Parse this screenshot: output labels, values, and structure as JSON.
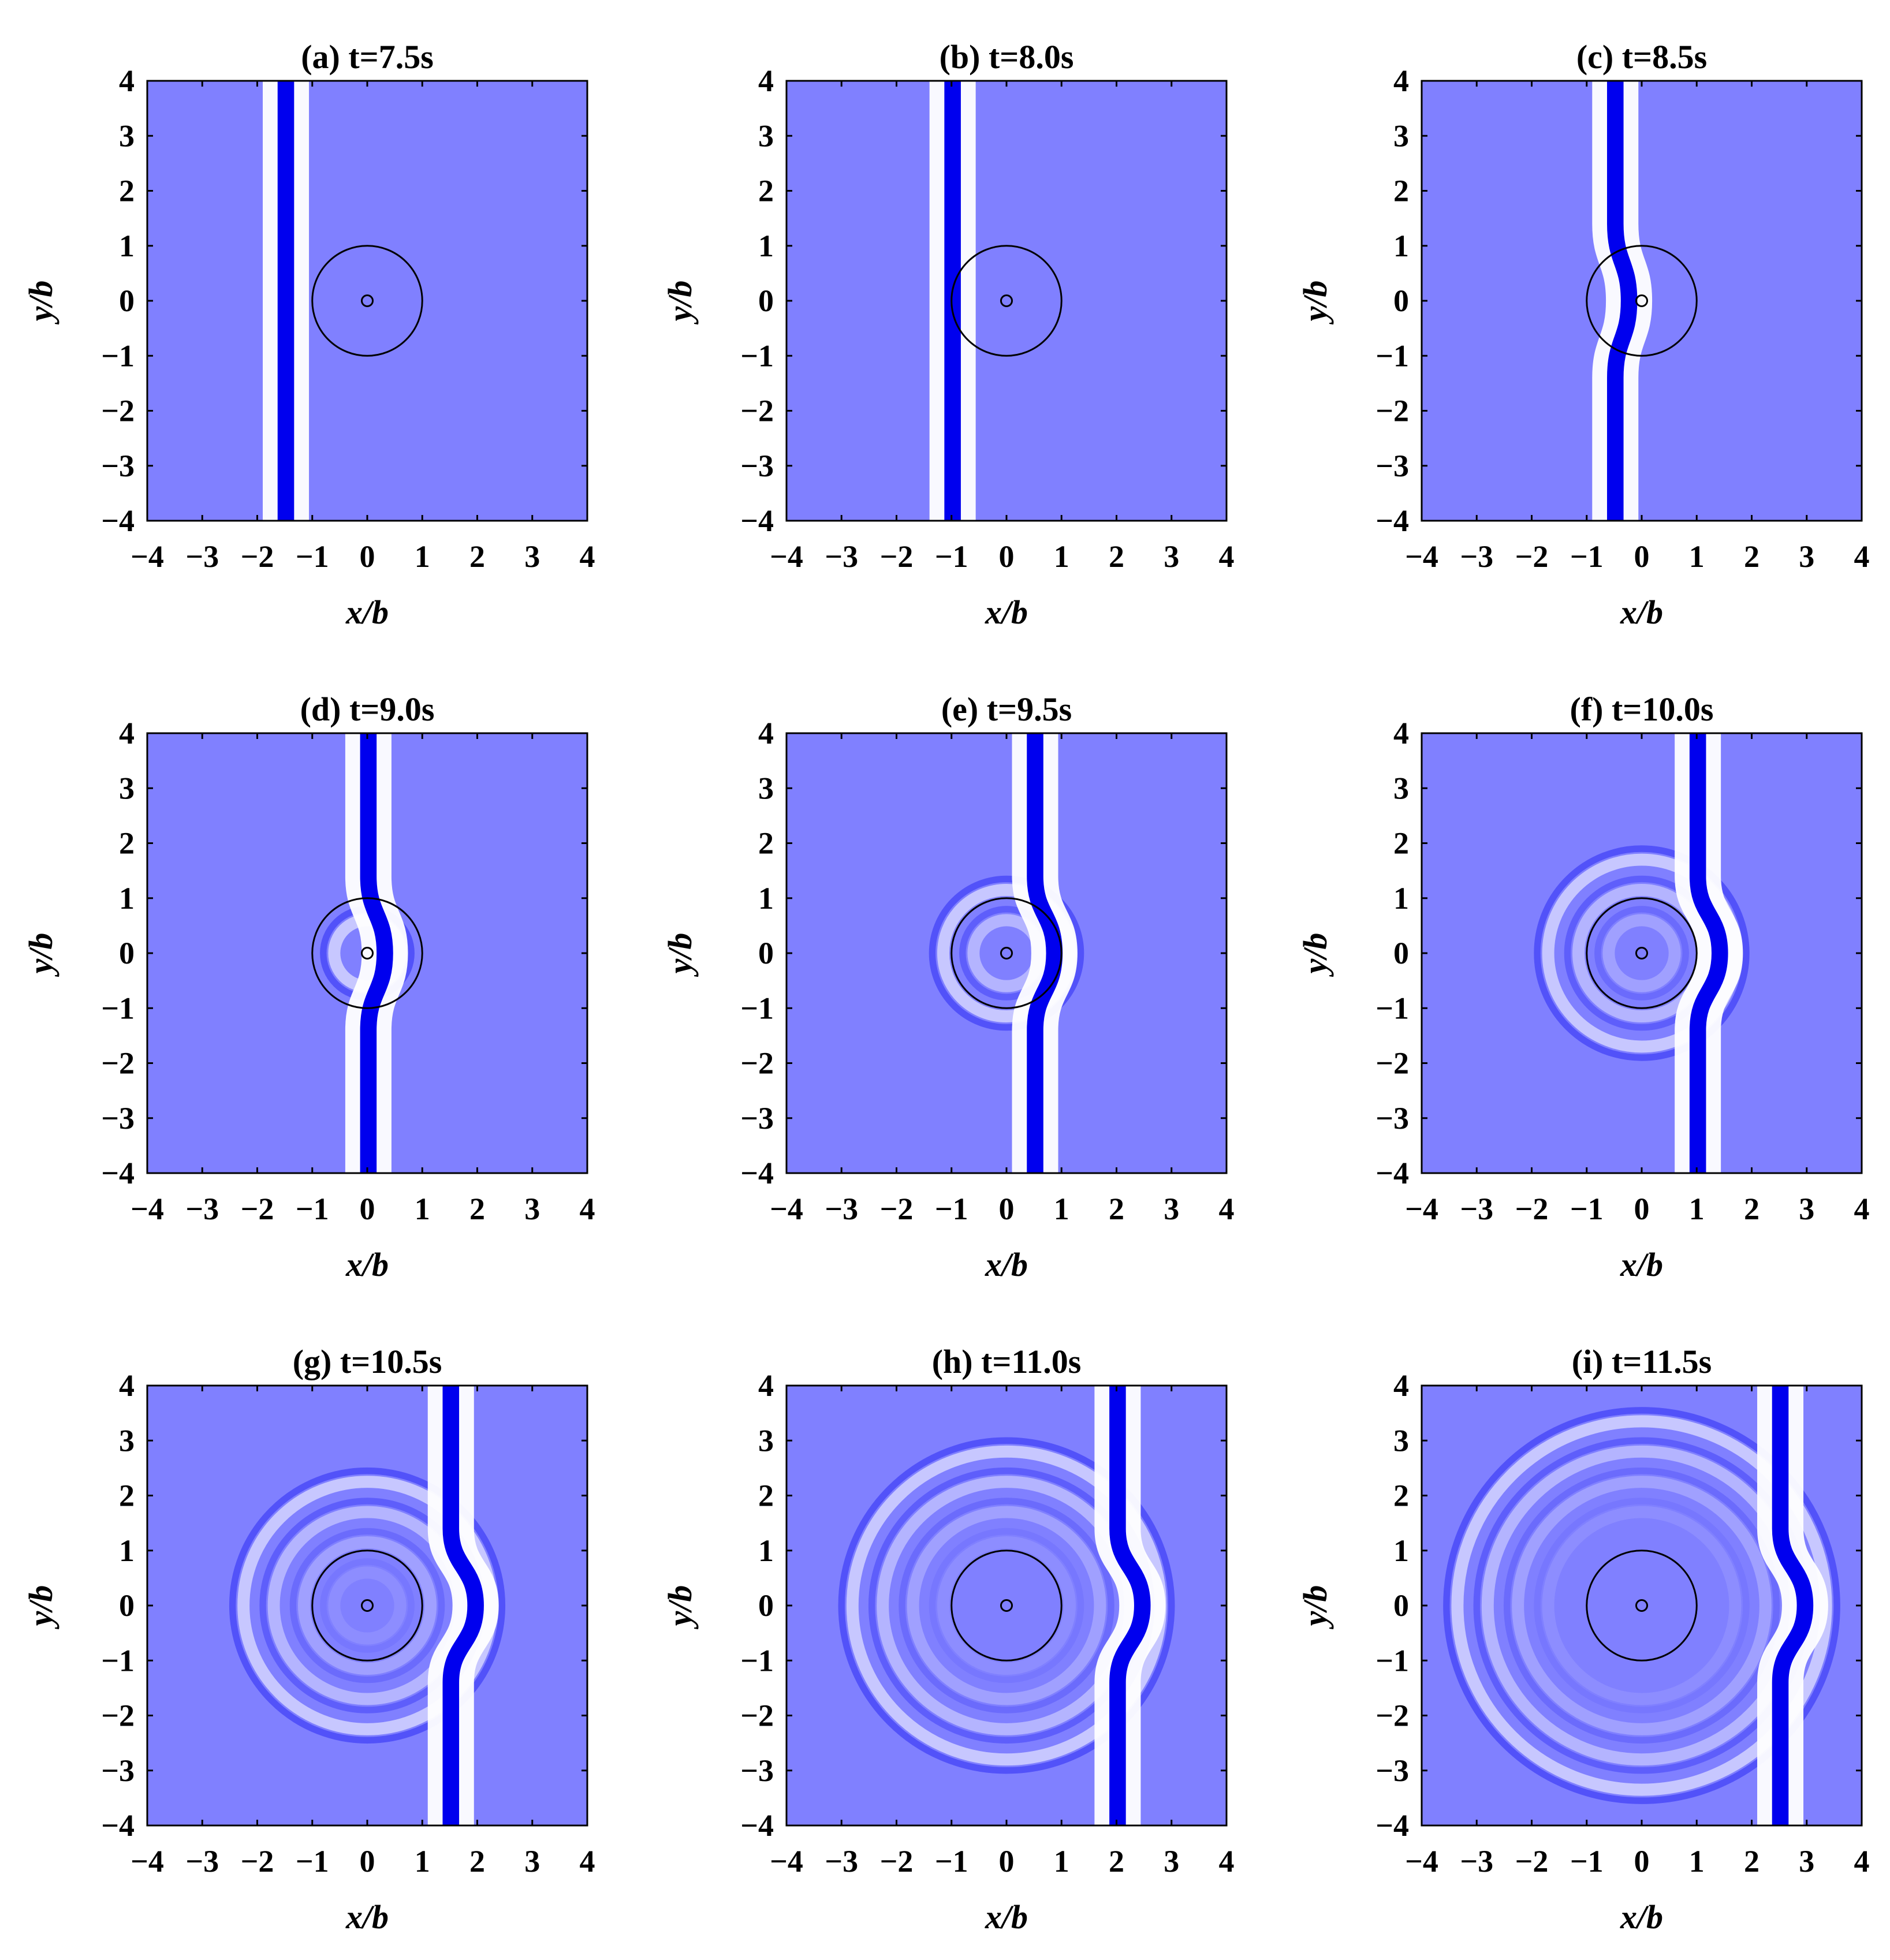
{
  "figure": {
    "description_free": true,
    "colors": {
      "background_field": "#8080ff",
      "wave_crest": "#0000ee",
      "wave_trough": "#ffffff",
      "circle": "#000000"
    }
  },
  "chart_data": [
    {
      "type": "heatmap",
      "title": "(a) t=7.5s",
      "t": 7.5,
      "xlabel": "x/b",
      "ylabel": "y/b",
      "xlim": [
        -4,
        4
      ],
      "ylim": [
        -4,
        4
      ],
      "xticks": [
        -4,
        -3,
        -2,
        -1,
        0,
        1,
        2,
        3,
        4
      ],
      "yticks": [
        4,
        3,
        2,
        1,
        0,
        -1,
        -2,
        -3,
        -4
      ],
      "wave_front_x": -1.5,
      "circle_radius": 1.0,
      "inner_circle_radius": 0.1
    },
    {
      "type": "heatmap",
      "title": "(b) t=8.0s",
      "t": 8.0,
      "xlabel": "x/b",
      "ylabel": "y/b",
      "xlim": [
        -4,
        4
      ],
      "ylim": [
        -4,
        4
      ],
      "xticks": [
        -4,
        -3,
        -2,
        -1,
        0,
        1,
        2,
        3,
        4
      ],
      "yticks": [
        4,
        3,
        2,
        1,
        0,
        -1,
        -2,
        -3,
        -4
      ],
      "wave_front_x": -1.0,
      "circle_radius": 1.0,
      "inner_circle_radius": 0.1
    },
    {
      "type": "heatmap",
      "title": "(c) t=8.5s",
      "t": 8.5,
      "xlabel": "x/b",
      "ylabel": "y/b",
      "xlim": [
        -4,
        4
      ],
      "ylim": [
        -4,
        4
      ],
      "xticks": [
        -4,
        -3,
        -2,
        -1,
        0,
        1,
        2,
        3,
        4
      ],
      "yticks": [
        4,
        3,
        2,
        1,
        0,
        -1,
        -2,
        -3,
        -4
      ],
      "wave_front_x": -0.5,
      "circle_radius": 1.0,
      "inner_circle_radius": 0.1
    },
    {
      "type": "heatmap",
      "title": "(d) t=9.0s",
      "t": 9.0,
      "xlabel": "x/b",
      "ylabel": "y/b",
      "xlim": [
        -4,
        4
      ],
      "ylim": [
        -4,
        4
      ],
      "xticks": [
        -4,
        -3,
        -2,
        -1,
        0,
        1,
        2,
        3,
        4
      ],
      "yticks": [
        4,
        3,
        2,
        1,
        0,
        -1,
        -2,
        -3,
        -4
      ],
      "wave_front_x": 0.0,
      "circle_radius": 1.0,
      "inner_circle_radius": 0.1
    },
    {
      "type": "heatmap",
      "title": "(e) t=9.5s",
      "t": 9.5,
      "xlabel": "x/b",
      "ylabel": "y/b",
      "xlim": [
        -4,
        4
      ],
      "ylim": [
        -4,
        4
      ],
      "xticks": [
        -4,
        -3,
        -2,
        -1,
        0,
        1,
        2,
        3,
        4
      ],
      "yticks": [
        4,
        3,
        2,
        1,
        0,
        -1,
        -2,
        -3,
        -4
      ],
      "wave_front_x": 0.5,
      "circle_radius": 1.0,
      "inner_circle_radius": 0.1
    },
    {
      "type": "heatmap",
      "title": "(f) t=10.0s",
      "t": 10.0,
      "xlabel": "x/b",
      "ylabel": "y/b",
      "xlim": [
        -4,
        4
      ],
      "ylim": [
        -4,
        4
      ],
      "xticks": [
        -4,
        -3,
        -2,
        -1,
        0,
        1,
        2,
        3,
        4
      ],
      "yticks": [
        4,
        3,
        2,
        1,
        0,
        -1,
        -2,
        -3,
        -4
      ],
      "wave_front_x": 1.0,
      "circle_radius": 1.0,
      "inner_circle_radius": 0.1
    },
    {
      "type": "heatmap",
      "title": "(g) t=10.5s",
      "t": 10.5,
      "xlabel": "x/b",
      "ylabel": "y/b",
      "xlim": [
        -4,
        4
      ],
      "ylim": [
        -4,
        4
      ],
      "xticks": [
        -4,
        -3,
        -2,
        -1,
        0,
        1,
        2,
        3,
        4
      ],
      "yticks": [
        4,
        3,
        2,
        1,
        0,
        -1,
        -2,
        -3,
        -4
      ],
      "wave_front_x": 1.5,
      "circle_radius": 1.0,
      "inner_circle_radius": 0.1
    },
    {
      "type": "heatmap",
      "title": "(h) t=11.0s",
      "t": 11.0,
      "xlabel": "x/b",
      "ylabel": "y/b",
      "xlim": [
        -4,
        4
      ],
      "ylim": [
        -4,
        4
      ],
      "xticks": [
        -4,
        -3,
        -2,
        -1,
        0,
        1,
        2,
        3,
        4
      ],
      "yticks": [
        4,
        3,
        2,
        1,
        0,
        -1,
        -2,
        -3,
        -4
      ],
      "wave_front_x": 2.0,
      "circle_radius": 1.0,
      "inner_circle_radius": 0.1
    },
    {
      "type": "heatmap",
      "title": "(i) t=11.5s",
      "t": 11.5,
      "xlabel": "x/b",
      "ylabel": "y/b",
      "xlim": [
        -4,
        4
      ],
      "ylim": [
        -4,
        4
      ],
      "xticks": [
        -4,
        -3,
        -2,
        -1,
        0,
        1,
        2,
        3,
        4
      ],
      "yticks": [
        4,
        3,
        2,
        1,
        0,
        -1,
        -2,
        -3,
        -4
      ],
      "wave_front_x": 2.5,
      "circle_radius": 1.0,
      "inner_circle_radius": 0.1
    }
  ]
}
